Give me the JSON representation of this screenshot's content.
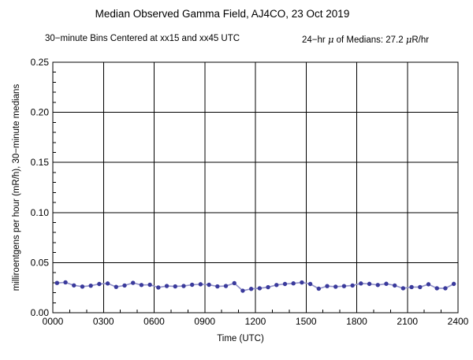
{
  "chart": {
    "subtitle": {
      "left": "30−minute Bins Centered at xx15 and xx45 UTC",
      "right_parts": [
        "24−hr ",
        "μ",
        " of Medians: 27.2 ",
        "μ",
        "R/hr"
      ]
    }
  },
  "chart_data": {
    "type": "line",
    "title": "Median Observed Gamma Field, AJ4CO, 23 Oct 2019",
    "subtitle": "30−minute Bins Centered at xx15 and xx45 UTC     24−hr μ of Medians: 27.2 μR/hr",
    "xlabel": "Time (UTC)",
    "ylabel": "milliroentgens per hour (mR/h), 30−minute medians",
    "stat_mean_of_medians": "27.2 μR/hr",
    "xlim": [
      0,
      24
    ],
    "ylim": [
      0,
      0.25
    ],
    "x_major_ticks": [
      0,
      3,
      6,
      9,
      12,
      15,
      18,
      21,
      24
    ],
    "x_tick_labels": [
      "0000",
      "0300",
      "0600",
      "0900",
      "1200",
      "1500",
      "1800",
      "2100",
      "2400"
    ],
    "x_minor_step": 1,
    "y_major_ticks": [
      0,
      0.05,
      0.1,
      0.15,
      0.2,
      0.25
    ],
    "y_tick_labels": [
      "0.00",
      "0.05",
      "0.10",
      "0.15",
      "0.20",
      "0.25"
    ],
    "y_minor_step": 0.01,
    "grid": true,
    "legend": "none",
    "colors": {
      "line": "#9191c8",
      "marker": "#3a3a9c",
      "axis": "#000000",
      "grid": "#000000"
    },
    "x": [
      0.25,
      0.75,
      1.25,
      1.75,
      2.25,
      2.75,
      3.25,
      3.75,
      4.25,
      4.75,
      5.25,
      5.75,
      6.25,
      6.75,
      7.25,
      7.75,
      8.25,
      8.75,
      9.25,
      9.75,
      10.25,
      10.75,
      11.25,
      11.75,
      12.25,
      12.75,
      13.25,
      13.75,
      14.25,
      14.75,
      15.25,
      15.75,
      16.25,
      16.75,
      17.25,
      17.75,
      18.25,
      18.75,
      19.25,
      19.75,
      20.25,
      20.75,
      21.25,
      21.75,
      22.25,
      22.75,
      23.25,
      23.75
    ],
    "y": [
      0.0297,
      0.0303,
      0.0273,
      0.0261,
      0.027,
      0.0287,
      0.0292,
      0.0258,
      0.0272,
      0.0298,
      0.0277,
      0.0279,
      0.0252,
      0.0267,
      0.0263,
      0.0267,
      0.0279,
      0.0284,
      0.0279,
      0.0263,
      0.0267,
      0.0295,
      0.022,
      0.0238,
      0.0244,
      0.0255,
      0.0277,
      0.0287,
      0.0293,
      0.0302,
      0.0287,
      0.024,
      0.0266,
      0.026,
      0.0266,
      0.0272,
      0.0292,
      0.0288,
      0.0277,
      0.0289,
      0.0272,
      0.0244,
      0.0256,
      0.0256,
      0.0284,
      0.0244,
      0.0244,
      0.0288
    ]
  }
}
